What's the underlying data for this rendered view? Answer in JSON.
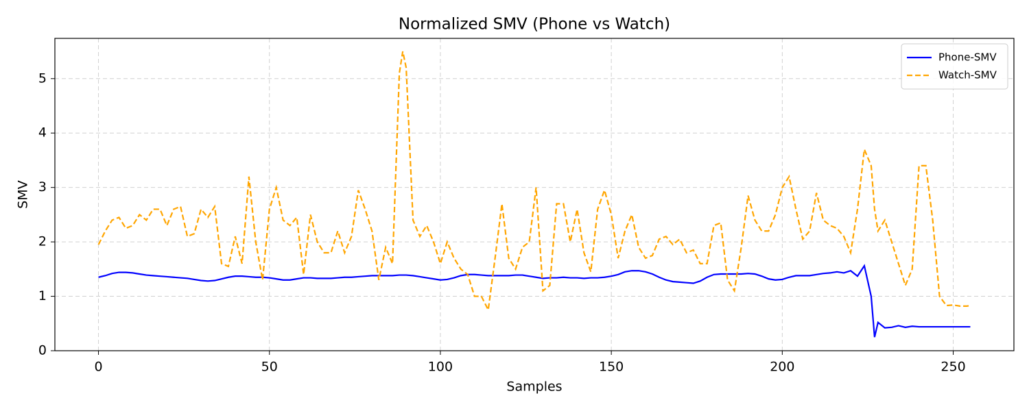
{
  "chart_data": {
    "type": "line",
    "title": "Normalized SMV (Phone vs Watch)",
    "x_label": "Samples",
    "y_label": "SMV",
    "x": [
      0,
      2,
      4,
      6,
      8,
      10,
      12,
      14,
      16,
      18,
      20,
      22,
      24,
      26,
      28,
      30,
      32,
      34,
      36,
      38,
      40,
      42,
      44,
      46,
      48,
      50,
      52,
      54,
      56,
      58,
      60,
      62,
      64,
      66,
      68,
      70,
      72,
      74,
      76,
      78,
      80,
      82,
      84,
      86,
      88,
      89,
      90,
      92,
      94,
      96,
      98,
      100,
      102,
      104,
      106,
      108,
      110,
      112,
      114,
      116,
      118,
      120,
      122,
      124,
      126,
      128,
      130,
      132,
      134,
      136,
      138,
      140,
      142,
      144,
      146,
      148,
      150,
      152,
      154,
      156,
      158,
      160,
      162,
      164,
      166,
      168,
      170,
      172,
      174,
      176,
      178,
      180,
      182,
      184,
      186,
      188,
      190,
      192,
      194,
      196,
      198,
      200,
      202,
      204,
      206,
      208,
      210,
      212,
      214,
      216,
      218,
      220,
      222,
      224,
      226,
      227,
      228,
      230,
      232,
      234,
      236,
      238,
      240,
      242,
      244,
      246,
      248,
      250,
      252,
      254,
      255
    ],
    "series": [
      {
        "name": "Phone-SMV",
        "color": "#0000ff",
        "dash": false,
        "values": [
          1.35,
          1.38,
          1.42,
          1.44,
          1.44,
          1.43,
          1.41,
          1.39,
          1.38,
          1.37,
          1.36,
          1.35,
          1.34,
          1.33,
          1.31,
          1.29,
          1.28,
          1.29,
          1.32,
          1.35,
          1.37,
          1.37,
          1.36,
          1.35,
          1.35,
          1.34,
          1.32,
          1.3,
          1.3,
          1.32,
          1.34,
          1.34,
          1.33,
          1.33,
          1.33,
          1.34,
          1.35,
          1.35,
          1.36,
          1.37,
          1.38,
          1.38,
          1.38,
          1.38,
          1.39,
          1.39,
          1.39,
          1.38,
          1.36,
          1.34,
          1.32,
          1.3,
          1.31,
          1.34,
          1.38,
          1.4,
          1.4,
          1.39,
          1.38,
          1.38,
          1.38,
          1.38,
          1.39,
          1.39,
          1.37,
          1.35,
          1.33,
          1.34,
          1.34,
          1.35,
          1.34,
          1.34,
          1.33,
          1.34,
          1.34,
          1.35,
          1.37,
          1.4,
          1.45,
          1.47,
          1.47,
          1.45,
          1.41,
          1.35,
          1.3,
          1.27,
          1.26,
          1.25,
          1.24,
          1.28,
          1.35,
          1.4,
          1.41,
          1.41,
          1.41,
          1.41,
          1.42,
          1.41,
          1.37,
          1.32,
          1.3,
          1.31,
          1.35,
          1.38,
          1.38,
          1.38,
          1.4,
          1.42,
          1.43,
          1.45,
          1.43,
          1.47,
          1.37,
          1.56,
          1.0,
          0.25,
          0.52,
          0.42,
          0.43,
          0.46,
          0.43,
          0.45,
          0.44,
          0.44,
          0.44,
          0.44,
          0.44,
          0.44,
          0.44,
          0.44,
          0.44
        ]
      },
      {
        "name": "Watch-SMV",
        "color": "#ffa500",
        "dash": true,
        "values": [
          1.95,
          2.2,
          2.4,
          2.45,
          2.25,
          2.3,
          2.5,
          2.4,
          2.6,
          2.6,
          2.3,
          2.6,
          2.65,
          2.1,
          2.15,
          2.6,
          2.45,
          2.65,
          1.6,
          1.55,
          2.1,
          1.6,
          3.2,
          2.0,
          1.3,
          2.6,
          3.0,
          2.4,
          2.3,
          2.45,
          1.4,
          2.5,
          2.0,
          1.8,
          1.8,
          2.2,
          1.8,
          2.1,
          2.95,
          2.6,
          2.2,
          1.3,
          1.9,
          1.6,
          5.1,
          5.5,
          5.2,
          2.4,
          2.1,
          2.3,
          2.0,
          1.6,
          2.0,
          1.7,
          1.5,
          1.4,
          1.0,
          1.0,
          0.75,
          1.7,
          2.7,
          1.7,
          1.5,
          1.9,
          2.0,
          3.0,
          1.1,
          1.2,
          2.7,
          2.7,
          2.0,
          2.6,
          1.8,
          1.45,
          2.6,
          2.95,
          2.5,
          1.7,
          2.2,
          2.5,
          1.9,
          1.7,
          1.75,
          2.05,
          2.1,
          1.95,
          2.05,
          1.8,
          1.85,
          1.6,
          1.6,
          2.3,
          2.35,
          1.3,
          1.1,
          1.9,
          2.85,
          2.4,
          2.2,
          2.2,
          2.5,
          3.0,
          3.2,
          2.6,
          2.05,
          2.2,
          2.9,
          2.4,
          2.3,
          2.25,
          2.1,
          1.8,
          2.6,
          3.7,
          3.4,
          2.6,
          2.2,
          2.4,
          2.0,
          1.6,
          1.2,
          1.5,
          3.4,
          3.4,
          2.4,
          1.0,
          0.83,
          0.84,
          0.82,
          0.82,
          0.83
        ]
      }
    ],
    "xlim": [
      -12.75,
      267.75
    ],
    "ylim": [
      0,
      5.74
    ],
    "xticks": [
      0,
      50,
      100,
      150,
      200,
      250
    ],
    "yticks": [
      0,
      1,
      2,
      3,
      4,
      5
    ],
    "grid": true,
    "legend": "upper right"
  }
}
